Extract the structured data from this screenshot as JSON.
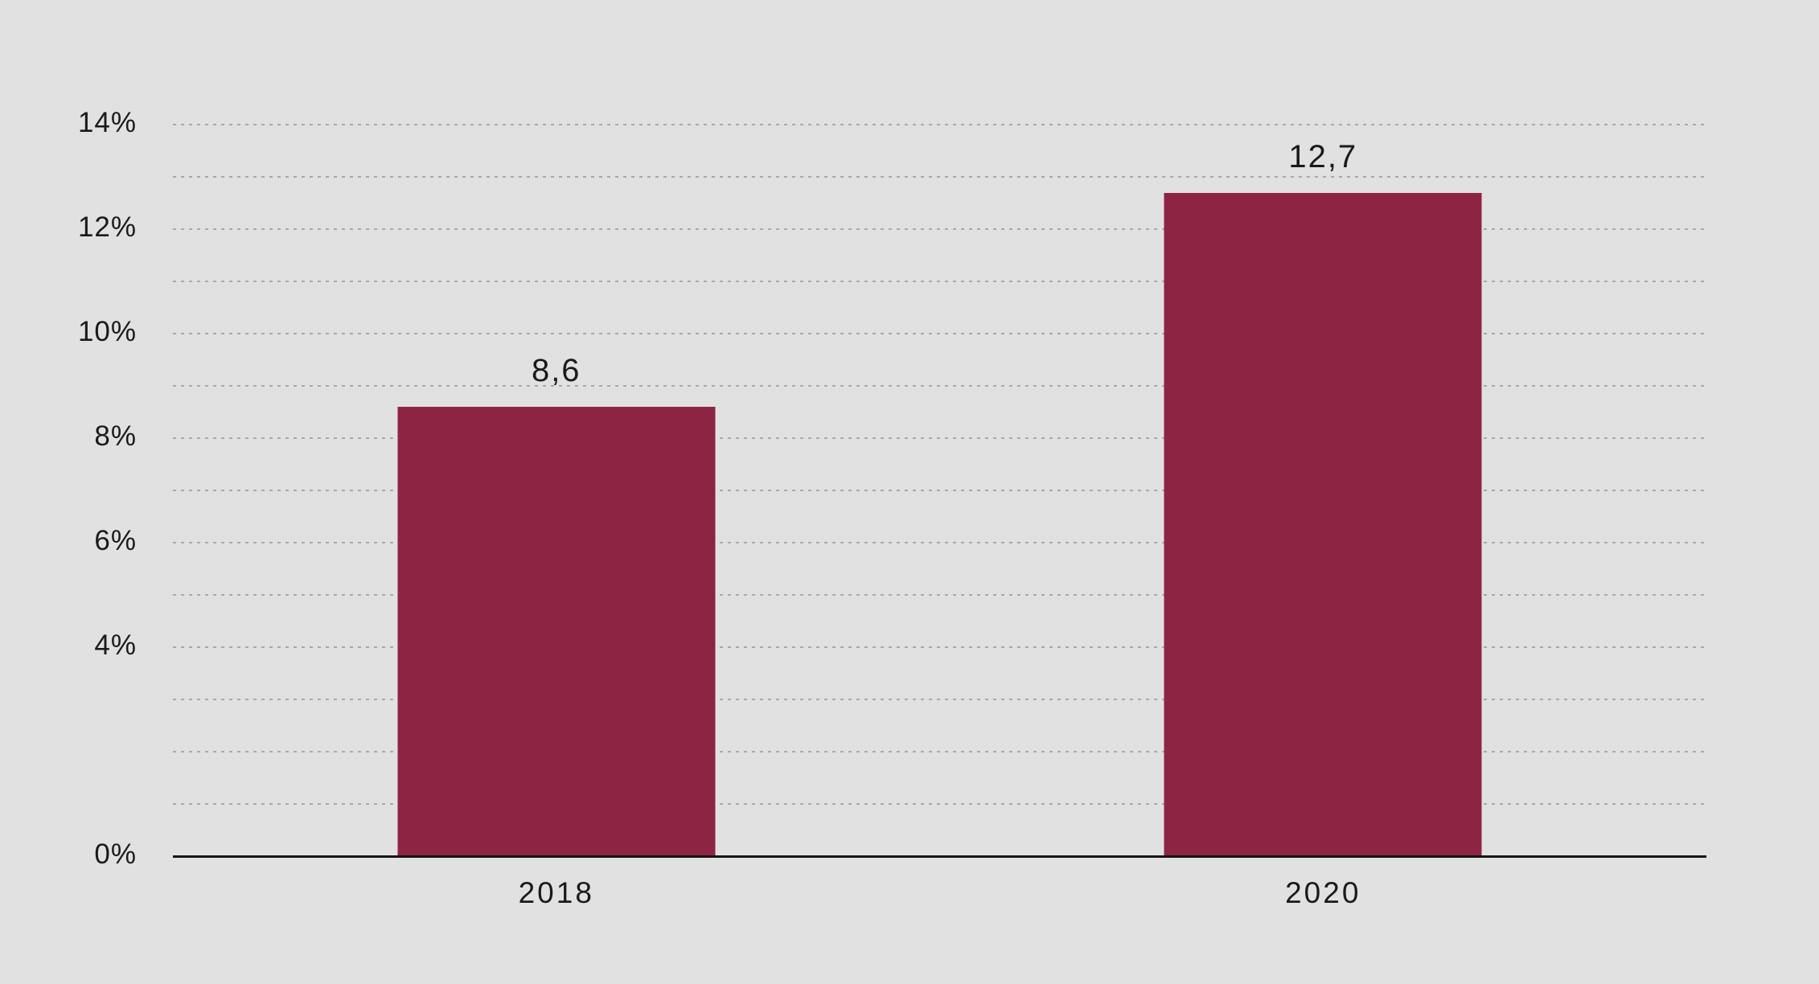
{
  "chart_data": {
    "type": "bar",
    "categories": [
      "2018",
      "2020"
    ],
    "values": [
      8.6,
      12.7
    ],
    "value_labels": [
      "8,6",
      "12,7"
    ],
    "title": "",
    "xlabel": "",
    "ylabel": "",
    "ylim": [
      0,
      14
    ],
    "y_ticks": [
      {
        "value": 14,
        "label": "14%"
      },
      {
        "value": 12,
        "label": "12%"
      },
      {
        "value": 10,
        "label": "10%"
      },
      {
        "value": 8,
        "label": "8%"
      },
      {
        "value": 6,
        "label": "6%"
      },
      {
        "value": 4,
        "label": "4%"
      },
      {
        "value": 0,
        "label": "0%"
      }
    ],
    "gridlines": {
      "from": 1,
      "to": 14,
      "interval": 1,
      "style": "dotted"
    },
    "legend": null,
    "grid": true,
    "colors": {
      "bar": "#8e2443",
      "background": "#e1e1e1",
      "gridline": "#a9a9a9",
      "axis_line": "#151515",
      "text": "#1a1a1a"
    }
  }
}
